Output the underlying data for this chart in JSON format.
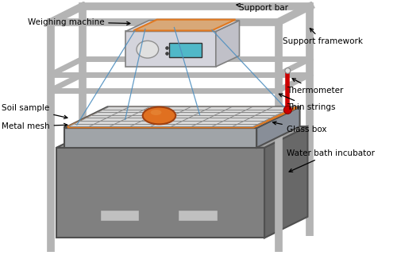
{
  "labels": {
    "weighing_machine": "Weighing machine",
    "support_bar": "Support bar",
    "support_framework": "Support framework",
    "thermometer": "Thermometer",
    "thin_strings": "Thin strings",
    "soil_sample": "Soil sample",
    "metal_mesh": "Metal mesh",
    "glass_box": "Glass box",
    "water_bath": "Water bath incubator"
  },
  "colors": {
    "frame_light": "#c8c8c8",
    "frame_mid": "#b0b0b0",
    "frame_dark": "#888888",
    "box_front": "#7a7a7a",
    "box_side": "#686868",
    "box_top_light": "#b0b0b0",
    "glass_rim_front": "#a8acb0",
    "glass_rim_side": "#8890a0",
    "glass_top": "#c8cccc",
    "mesh_line": "#888888",
    "thermometer_red": "#cc0000",
    "weighing_bg": "#d4d4dc",
    "weighing_screen": "#50b8c8",
    "soil_color": "#e07020",
    "orange_border": "#e07820",
    "string_color": "#5090c0",
    "white": "#ffffff",
    "black": "#000000"
  }
}
